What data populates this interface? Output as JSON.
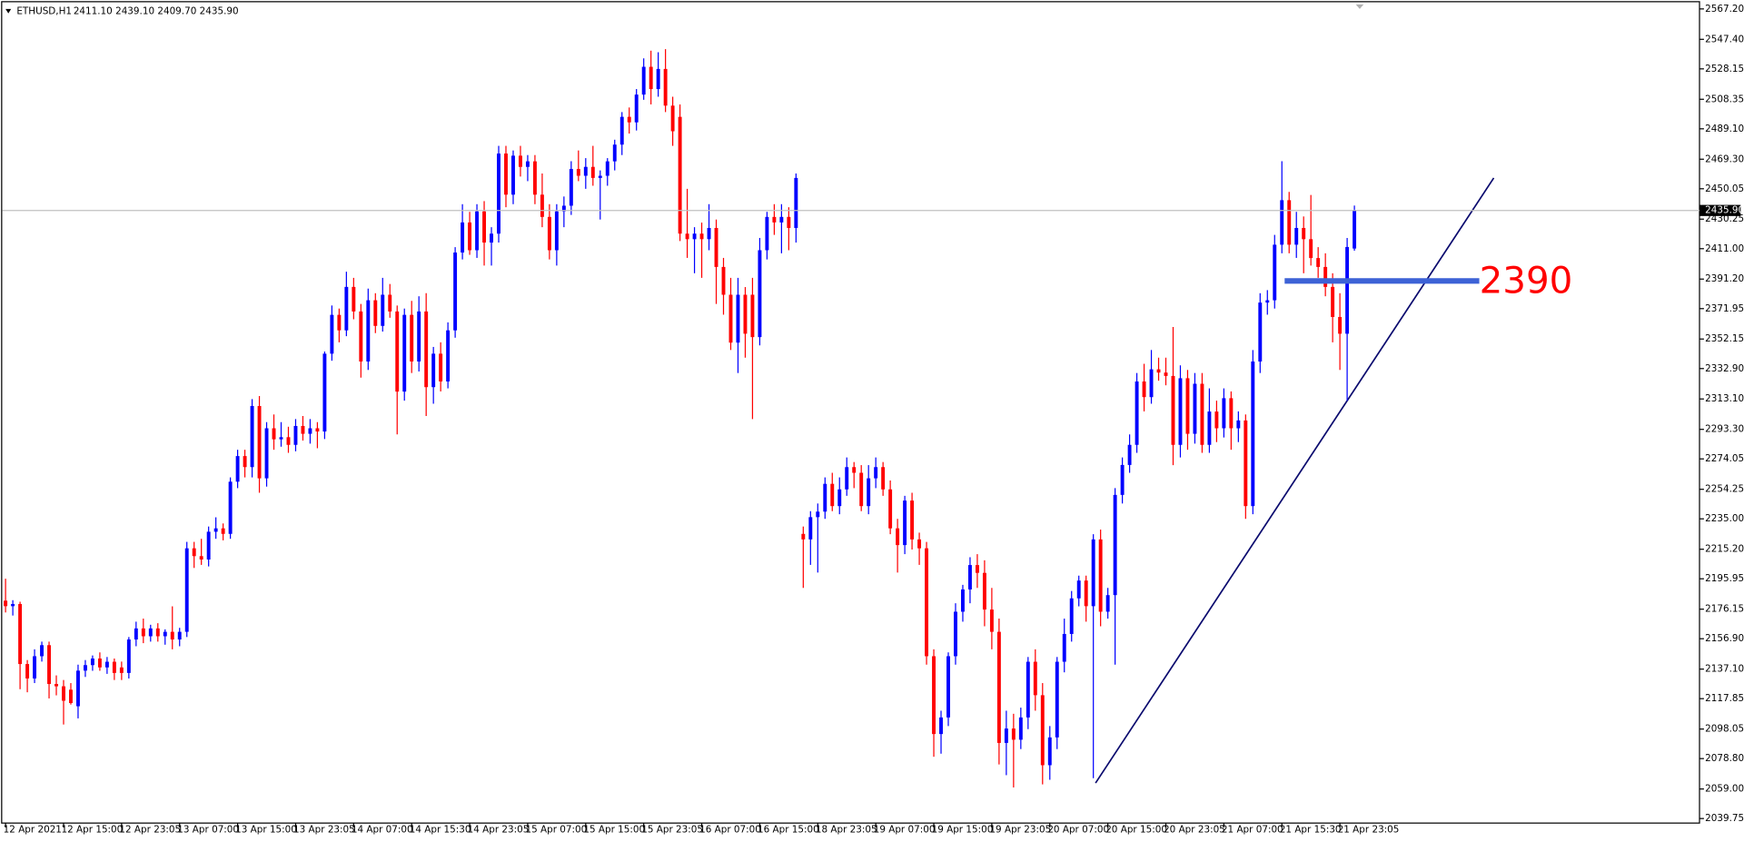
{
  "chart_data": {
    "type": "candlestick",
    "title": "ETHUSD,H1",
    "subtitle": "2411.10 2439.10 2409.70 2435.90",
    "up_color": "#0000ff",
    "down_color": "#ff0000",
    "ylim": [
      2036.8,
      2573.0
    ],
    "yticks": [
      {
        "value": 2567.2,
        "label": "2567.20"
      },
      {
        "value": 2547.4,
        "label": "2547.40"
      },
      {
        "value": 2528.15,
        "label": "2528.15"
      },
      {
        "value": 2508.35,
        "label": "2508.35"
      },
      {
        "value": 2489.1,
        "label": "2489.10"
      },
      {
        "value": 2469.3,
        "label": "2469.30"
      },
      {
        "value": 2450.05,
        "label": "2450.05"
      },
      {
        "value": 2430.25,
        "label": "2430.25"
      },
      {
        "value": 2411,
        "label": "2411.00"
      },
      {
        "value": 2391.2,
        "label": "2391.20"
      },
      {
        "value": 2371.95,
        "label": "2371.95"
      },
      {
        "value": 2352.15,
        "label": "2352.15"
      },
      {
        "value": 2332.9,
        "label": "2332.90"
      },
      {
        "value": 2313.1,
        "label": "2313.10"
      },
      {
        "value": 2293.3,
        "label": "2293.30"
      },
      {
        "value": 2274.05,
        "label": "2274.05"
      },
      {
        "value": 2254.25,
        "label": "2254.25"
      },
      {
        "value": 2235,
        "label": "2235.00"
      },
      {
        "value": 2215.2,
        "label": "2215.20"
      },
      {
        "value": 2195.95,
        "label": "2195.95"
      },
      {
        "value": 2176.15,
        "label": "2176.15"
      },
      {
        "value": 2156.9,
        "label": "2156.90"
      },
      {
        "value": 2137.1,
        "label": "2137.10"
      },
      {
        "value": 2117.85,
        "label": "2117.85"
      },
      {
        "value": 2098.05,
        "label": "2098.05"
      },
      {
        "value": 2078.8,
        "label": "2078.80"
      },
      {
        "value": 2059,
        "label": "2059.00"
      },
      {
        "value": 2039.75,
        "label": "2039.75"
      }
    ],
    "last_price": {
      "value": 2435.9,
      "label": "2435.90"
    },
    "level_line": 2390,
    "categories": [
      "12 Apr 2021",
      null,
      null,
      null,
      null,
      null,
      null,
      null,
      "12 Apr 15:00",
      null,
      null,
      null,
      null,
      null,
      null,
      null,
      "12 Apr 23:05",
      null,
      null,
      null,
      null,
      null,
      null,
      null,
      "13 Apr 07:00",
      null,
      null,
      null,
      null,
      null,
      null,
      null,
      "13 Apr 15:00",
      null,
      null,
      null,
      null,
      null,
      null,
      null,
      "13 Apr 23:05",
      null,
      null,
      null,
      null,
      null,
      null,
      null,
      "14 Apr 07:00",
      null,
      null,
      null,
      null,
      null,
      null,
      null,
      "14 Apr 15:30",
      null,
      null,
      null,
      null,
      null,
      null,
      null,
      "14 Apr 23:05",
      null,
      null,
      null,
      null,
      null,
      null,
      null,
      "15 Apr 07:00",
      null,
      null,
      null,
      null,
      null,
      null,
      null,
      "15 Apr 15:00",
      null,
      null,
      null,
      null,
      null,
      null,
      null,
      "15 Apr 23:05",
      null,
      null,
      null,
      null,
      null,
      null,
      null,
      "16 Apr 07:00",
      null,
      null,
      null,
      null,
      null,
      null,
      null,
      "16 Apr 15:00",
      null,
      null,
      null,
      null,
      null,
      null,
      null,
      "18 Apr 23:05",
      null,
      null,
      null,
      null,
      null,
      null,
      null,
      "19 Apr 07:00",
      null,
      null,
      null,
      null,
      null,
      null,
      null,
      "19 Apr 15:00",
      null,
      null,
      null,
      null,
      null,
      null,
      null,
      "19 Apr 23:05",
      null,
      null,
      null,
      null,
      null,
      null,
      null,
      "20 Apr 07:00",
      null,
      null,
      null,
      null,
      null,
      null,
      null,
      "20 Apr 15:00",
      null,
      null,
      null,
      null,
      null,
      null,
      null,
      "20 Apr 23:05",
      null,
      null,
      null,
      null,
      null,
      null,
      null,
      "21 Apr 07:00",
      null,
      null,
      null,
      null,
      null,
      null,
      null,
      "21 Apr 15:30",
      null,
      null,
      null,
      null,
      null,
      null,
      null,
      "21 Apr 23:05",
      null,
      null
    ],
    "ohlc": [
      [
        2181.7,
        2196,
        2174,
        2178.1
      ],
      [
        2178.1,
        2182,
        2172,
        2179.5
      ],
      [
        2179.5,
        2181,
        2124,
        2140.4
      ],
      [
        2140.4,
        2143,
        2122,
        2131.0
      ],
      [
        2131.0,
        2150,
        2128,
        2145.5
      ],
      [
        2145.5,
        2155,
        2142,
        2152.7
      ],
      [
        2152.7,
        2155,
        2118,
        2127.4
      ],
      [
        2127.4,
        2133,
        2120,
        2125.9
      ],
      [
        2125.9,
        2130,
        2101,
        2116.5
      ],
      [
        2123.7,
        2128,
        2114,
        2115.0
      ],
      [
        2112.9,
        2140,
        2105,
        2136.1
      ],
      [
        2136.1,
        2143,
        2132,
        2139.7
      ],
      [
        2139.7,
        2146,
        2136,
        2144.0
      ],
      [
        2144.0,
        2148,
        2136,
        2138.2
      ],
      [
        2138.2,
        2145,
        2134,
        2141.9
      ],
      [
        2141.9,
        2144,
        2130,
        2134.6
      ],
      [
        2138.2,
        2142,
        2130,
        2134.6
      ],
      [
        2134.6,
        2158,
        2131,
        2156.4
      ],
      [
        2156.4,
        2168,
        2152,
        2163.6
      ],
      [
        2163.6,
        2170,
        2154,
        2158.5
      ],
      [
        2158.5,
        2166,
        2155,
        2163.6
      ],
      [
        2163.6,
        2167,
        2155,
        2158.5
      ],
      [
        2158.5,
        2163,
        2153,
        2161.4
      ],
      [
        2161.4,
        2178,
        2150,
        2156.4
      ],
      [
        2156.4,
        2164,
        2152,
        2161.4
      ],
      [
        2161.4,
        2220,
        2158,
        2215.8
      ],
      [
        2215.8,
        2220,
        2203,
        2210.7
      ],
      [
        2210.7,
        2222,
        2205,
        2208.5
      ],
      [
        2208.5,
        2230,
        2204,
        2226.6
      ],
      [
        2226.6,
        2236,
        2222,
        2228.8
      ],
      [
        2228.8,
        2232,
        2221,
        2225.2
      ],
      [
        2225.2,
        2262,
        2222,
        2259.2
      ],
      [
        2259.2,
        2280,
        2255,
        2275.9
      ],
      [
        2275.9,
        2280,
        2262,
        2268.7
      ],
      [
        2268.7,
        2313,
        2262,
        2308.5
      ],
      [
        2308.5,
        2315,
        2252,
        2261.4
      ],
      [
        2261.4,
        2298,
        2256,
        2294.0
      ],
      [
        2294.0,
        2303,
        2280,
        2286.8
      ],
      [
        2286.8,
        2298,
        2282,
        2288.2
      ],
      [
        2288.2,
        2295,
        2278,
        2283.2
      ],
      [
        2283.2,
        2300,
        2279,
        2295.5
      ],
      [
        2295.5,
        2302,
        2286,
        2290.4
      ],
      [
        2290.4,
        2300,
        2284,
        2294.0
      ],
      [
        2294.0,
        2298,
        2281,
        2291.9
      ],
      [
        2291.9,
        2344,
        2287,
        2342.6
      ],
      [
        2342.6,
        2374,
        2338,
        2367.9
      ],
      [
        2367.9,
        2372,
        2350,
        2357.8
      ],
      [
        2357.8,
        2396,
        2354,
        2386.1
      ],
      [
        2386.1,
        2392,
        2365,
        2370.1
      ],
      [
        2370.1,
        2375,
        2327,
        2337.5
      ],
      [
        2337.5,
        2385,
        2332,
        2377.4
      ],
      [
        2377.4,
        2382,
        2356,
        2360.7
      ],
      [
        2360.7,
        2392,
        2357,
        2381.0
      ],
      [
        2381.0,
        2388,
        2366,
        2370.1
      ],
      [
        2370.1,
        2374,
        2290,
        2317.9
      ],
      [
        2317.9,
        2372,
        2312,
        2367.9
      ],
      [
        2367.9,
        2377,
        2330,
        2337.5
      ],
      [
        2337.5,
        2380,
        2331,
        2370.1
      ],
      [
        2370.1,
        2382,
        2302,
        2320.8
      ],
      [
        2320.8,
        2347,
        2310,
        2342.6
      ],
      [
        2342.6,
        2350,
        2318,
        2324.5
      ],
      [
        2324.5,
        2363,
        2320,
        2357.8
      ],
      [
        2357.8,
        2412,
        2353,
        2408.5
      ],
      [
        2408.5,
        2440,
        2404,
        2428.1
      ],
      [
        2428.1,
        2435,
        2407,
        2410.0
      ],
      [
        2410.0,
        2440,
        2405,
        2435.3
      ],
      [
        2435.3,
        2442,
        2400,
        2415.0
      ],
      [
        2415.0,
        2425,
        2400,
        2420.8
      ],
      [
        2420.8,
        2478,
        2415,
        2473.0
      ],
      [
        2473.0,
        2478,
        2438,
        2446.2
      ],
      [
        2446.2,
        2475,
        2440,
        2471.6
      ],
      [
        2471.6,
        2478,
        2458,
        2464.3
      ],
      [
        2464.3,
        2472,
        2455,
        2467.9
      ],
      [
        2467.9,
        2472,
        2440,
        2446.2
      ],
      [
        2446.2,
        2460,
        2425,
        2431.7
      ],
      [
        2431.7,
        2440,
        2404,
        2410.0
      ],
      [
        2410.0,
        2440,
        2400,
        2435.3
      ],
      [
        2435.3,
        2445,
        2425,
        2439.0
      ],
      [
        2439.0,
        2468,
        2433,
        2462.9
      ],
      [
        2462.9,
        2475,
        2455,
        2458.5
      ],
      [
        2458.5,
        2470,
        2450,
        2464.3
      ],
      [
        2464.3,
        2478,
        2452,
        2457.1
      ],
      [
        2457.1,
        2462,
        2430,
        2458.5
      ],
      [
        2458.5,
        2470,
        2452,
        2467.9
      ],
      [
        2467.9,
        2482,
        2462,
        2478.8
      ],
      [
        2478.8,
        2500,
        2472,
        2496.9
      ],
      [
        2496.9,
        2503,
        2486,
        2493.3
      ],
      [
        2493.3,
        2515,
        2488,
        2511.4
      ],
      [
        2511.4,
        2535,
        2508,
        2529.5
      ],
      [
        2529.5,
        2540,
        2505,
        2515.0
      ],
      [
        2515.0,
        2539,
        2510,
        2528.1
      ],
      [
        2528.1,
        2541,
        2500,
        2504.2
      ],
      [
        2504.2,
        2510,
        2478,
        2487.5
      ],
      [
        2496.9,
        2505,
        2416,
        2420.8
      ],
      [
        2420.8,
        2450,
        2405,
        2417.2
      ],
      [
        2417.2,
        2425,
        2395,
        2420.8
      ],
      [
        2420.8,
        2428,
        2392,
        2417.2
      ],
      [
        2417.2,
        2440,
        2410,
        2424.5
      ],
      [
        2424.5,
        2430,
        2375,
        2399.1
      ],
      [
        2399.1,
        2405,
        2368,
        2381.0
      ],
      [
        2381.0,
        2392,
        2345,
        2349.8
      ],
      [
        2349.8,
        2392,
        2330,
        2381.0
      ],
      [
        2381.0,
        2386,
        2340,
        2355.6
      ],
      [
        2381.0,
        2392,
        2300,
        2353.4
      ],
      [
        2353.4,
        2418,
        2348,
        2410.0
      ],
      [
        2410.0,
        2435,
        2404,
        2431.7
      ],
      [
        2431.7,
        2440,
        2420,
        2428.1
      ],
      [
        2428.1,
        2440,
        2408,
        2431.7
      ],
      [
        2431.7,
        2438,
        2410,
        2424.5
      ],
      [
        2424.5,
        2460,
        2415,
        2457.1
      ],
      [
        2225.2,
        2230,
        2190,
        2221.6
      ],
      [
        2221.6,
        2240,
        2205,
        2236.1
      ],
      [
        2236.1,
        2245,
        2200,
        2239.7
      ],
      [
        2239.7,
        2262,
        2235,
        2257.8
      ],
      [
        2257.8,
        2265,
        2240,
        2243.3
      ],
      [
        2243.3,
        2262,
        2238,
        2254.2
      ],
      [
        2254.2,
        2275,
        2250,
        2268.7
      ],
      [
        2268.7,
        2272,
        2255,
        2265.0
      ],
      [
        2265.0,
        2270,
        2240,
        2243.3
      ],
      [
        2243.3,
        2270,
        2238,
        2261.4
      ],
      [
        2261.4,
        2275,
        2255,
        2268.7
      ],
      [
        2268.7,
        2272,
        2250,
        2254.2
      ],
      [
        2254.2,
        2260,
        2225,
        2228.8
      ],
      [
        2228.8,
        2235,
        2200,
        2217.9
      ],
      [
        2217.9,
        2250,
        2212,
        2246.9
      ],
      [
        2246.9,
        2252,
        2215,
        2221.6
      ],
      [
        2221.6,
        2226,
        2205,
        2215.8
      ],
      [
        2215.8,
        2220,
        2140,
        2145.5
      ],
      [
        2145.5,
        2150,
        2080,
        2094.8
      ],
      [
        2094.8,
        2110,
        2082,
        2105.6
      ],
      [
        2105.6,
        2148,
        2100,
        2145.5
      ],
      [
        2145.5,
        2180,
        2140,
        2174.5
      ],
      [
        2174.5,
        2192,
        2168,
        2189.0
      ],
      [
        2189.0,
        2210,
        2180,
        2204.9
      ],
      [
        2204.9,
        2212,
        2190,
        2199.8
      ],
      [
        2199.8,
        2208,
        2165,
        2175.9
      ],
      [
        2175.9,
        2190,
        2150,
        2161.4
      ],
      [
        2161.4,
        2170,
        2075,
        2089.0
      ],
      [
        2089.0,
        2110,
        2068,
        2098.4
      ],
      [
        2098.4,
        2108,
        2060,
        2091.1
      ],
      [
        2091.1,
        2112,
        2085,
        2105.6
      ],
      [
        2105.6,
        2145,
        2098,
        2141.9
      ],
      [
        2141.9,
        2150,
        2110,
        2120.1
      ],
      [
        2120.1,
        2128,
        2062,
        2074.5
      ],
      [
        2074.5,
        2100,
        2065,
        2092.6
      ],
      [
        2092.6,
        2145,
        2085,
        2141.9
      ],
      [
        2141.9,
        2170,
        2135,
        2160.0
      ],
      [
        2160.0,
        2188,
        2155,
        2183.2
      ],
      [
        2183.2,
        2198,
        2178,
        2194.8
      ],
      [
        2194.8,
        2198,
        2168,
        2178.1
      ],
      [
        2178.1,
        2225,
        2066,
        2221.6
      ],
      [
        2221.6,
        2228,
        2165,
        2174.5
      ],
      [
        2174.5,
        2190,
        2170,
        2185.3
      ],
      [
        2185.3,
        2255,
        2140,
        2250.6
      ],
      [
        2250.6,
        2275,
        2245,
        2270.1
      ],
      [
        2270.1,
        2290,
        2265,
        2283.2
      ],
      [
        2283.2,
        2330,
        2278,
        2324.5
      ],
      [
        2324.5,
        2336,
        2305,
        2314.3
      ],
      [
        2314.3,
        2345,
        2310,
        2332.4
      ],
      [
        2332.4,
        2340,
        2325,
        2330.3
      ],
      [
        2330.3,
        2340,
        2322,
        2328.1
      ],
      [
        2328.1,
        2360,
        2270,
        2283.2
      ],
      [
        2283.2,
        2335,
        2275,
        2326.6
      ],
      [
        2326.6,
        2332,
        2280,
        2290.4
      ],
      [
        2290.4,
        2330,
        2284,
        2323.0
      ],
      [
        2323.0,
        2330,
        2278,
        2283.2
      ],
      [
        2283.2,
        2320,
        2278,
        2304.9
      ],
      [
        2304.9,
        2312,
        2285,
        2294.0
      ],
      [
        2294.0,
        2320,
        2288,
        2313.6
      ],
      [
        2313.6,
        2318,
        2280,
        2294.0
      ],
      [
        2294.0,
        2305,
        2285,
        2299.1
      ],
      [
        2299.1,
        2303,
        2235,
        2243.3
      ],
      [
        2243.3,
        2345,
        2238,
        2337.5
      ],
      [
        2337.5,
        2382,
        2330,
        2375.9
      ],
      [
        2375.9,
        2384,
        2368,
        2377.4
      ],
      [
        2377.4,
        2420,
        2372,
        2413.6
      ],
      [
        2413.6,
        2468,
        2408,
        2442.6
      ],
      [
        2442.6,
        2448,
        2408,
        2413.6
      ],
      [
        2413.6,
        2435,
        2405,
        2424.5
      ],
      [
        2424.5,
        2432,
        2395,
        2417.2
      ],
      [
        2417.2,
        2446,
        2400,
        2404.9
      ],
      [
        2404.9,
        2412,
        2392,
        2399.1
      ],
      [
        2399.1,
        2408,
        2380,
        2386.1
      ],
      [
        2386.1,
        2395,
        2350,
        2366.5
      ],
      [
        2366.5,
        2382,
        2332,
        2355.6
      ],
      [
        2355.6,
        2418,
        2312,
        2412.1
      ],
      [
        2411.1,
        2439.1,
        2409.7,
        2435.9
      ]
    ]
  }
}
